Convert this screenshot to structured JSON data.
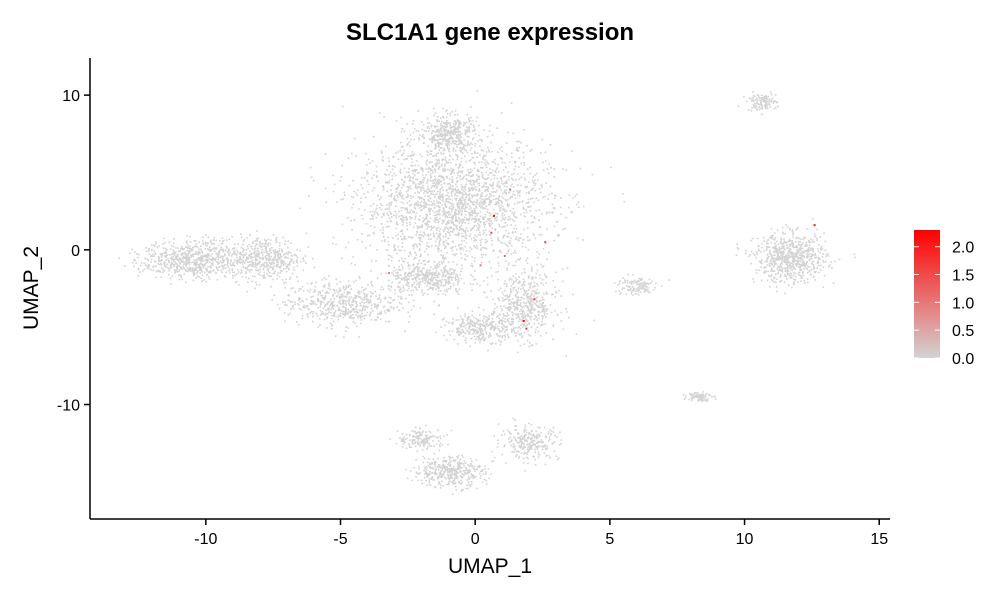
{
  "chart_data": {
    "type": "scatter",
    "title": "SLC1A1 gene expression",
    "xlabel": "UMAP_1",
    "ylabel": "UMAP_2",
    "xlim": [
      -14.3,
      15.4
    ],
    "ylim": [
      -17.4,
      12.4
    ],
    "x_ticks": [
      -10,
      -5,
      0,
      5,
      10,
      15
    ],
    "y_ticks": [
      -10,
      0,
      10
    ],
    "x_tick_labels": [
      "-10",
      "-5",
      "0",
      "5",
      "10",
      "15"
    ],
    "y_tick_labels": [
      "-10",
      "0",
      "10"
    ],
    "grid": false,
    "point_color_low": "#d3d3d3",
    "point_color_high": "#ff0000",
    "color_scale": {
      "min": 0.0,
      "max": 2.3,
      "labels": [
        "2.0",
        "1.5",
        "1.0",
        "0.5",
        "0.0"
      ],
      "label_values": [
        2.0,
        1.5,
        1.0,
        0.5,
        0.0
      ],
      "placement": "right"
    },
    "clusters": [
      {
        "center": [
          -0.8,
          3.0
        ],
        "spread": [
          3.2,
          3.6
        ],
        "n": 2200
      },
      {
        "center": [
          -1.0,
          7.5
        ],
        "spread": [
          1.0,
          1.2
        ],
        "n": 400
      },
      {
        "center": [
          -10.5,
          -0.6
        ],
        "spread": [
          1.7,
          1.1
        ],
        "n": 700
      },
      {
        "center": [
          -7.8,
          -0.5
        ],
        "spread": [
          1.2,
          1.3
        ],
        "n": 450
      },
      {
        "center": [
          -5.0,
          -3.4
        ],
        "spread": [
          1.9,
          1.3
        ],
        "n": 550
      },
      {
        "center": [
          -1.8,
          -1.8
        ],
        "spread": [
          1.3,
          1.0
        ],
        "n": 400
      },
      {
        "center": [
          1.8,
          -3.5
        ],
        "spread": [
          1.1,
          2.0
        ],
        "n": 500
      },
      {
        "center": [
          0.2,
          -5.0
        ],
        "spread": [
          1.2,
          0.8
        ],
        "n": 300
      },
      {
        "center": [
          -1.0,
          -14.3
        ],
        "spread": [
          1.2,
          0.9
        ],
        "n": 400
      },
      {
        "center": [
          2.0,
          -12.4
        ],
        "spread": [
          1.0,
          1.0
        ],
        "n": 250
      },
      {
        "center": [
          -2.0,
          -12.2
        ],
        "spread": [
          0.8,
          0.6
        ],
        "n": 150
      },
      {
        "center": [
          11.7,
          -0.5
        ],
        "spread": [
          1.2,
          1.4
        ],
        "n": 700
      },
      {
        "center": [
          10.6,
          9.6
        ],
        "spread": [
          0.5,
          0.5
        ],
        "n": 120
      },
      {
        "center": [
          8.3,
          -9.4
        ],
        "spread": [
          0.4,
          0.3
        ],
        "n": 80
      },
      {
        "center": [
          5.9,
          -2.3
        ],
        "spread": [
          0.7,
          0.6
        ],
        "n": 120
      }
    ],
    "expressing_cells": [
      {
        "x": 0.7,
        "y": 2.2,
        "value": 2.3
      },
      {
        "x": 0.6,
        "y": 1.1,
        "value": 1.5
      },
      {
        "x": 1.3,
        "y": 3.9,
        "value": 1.2
      },
      {
        "x": 0.2,
        "y": -1.0,
        "value": 1.0
      },
      {
        "x": 2.6,
        "y": 0.5,
        "value": 1.4
      },
      {
        "x": 2.2,
        "y": -3.2,
        "value": 1.8
      },
      {
        "x": 1.8,
        "y": -4.6,
        "value": 2.1
      },
      {
        "x": 1.9,
        "y": -5.1,
        "value": 1.6
      },
      {
        "x": 12.6,
        "y": 1.6,
        "value": 2.0
      },
      {
        "x": -3.2,
        "y": -1.5,
        "value": 0.9
      },
      {
        "x": 1.1,
        "y": -0.4,
        "value": 1.1
      }
    ]
  }
}
